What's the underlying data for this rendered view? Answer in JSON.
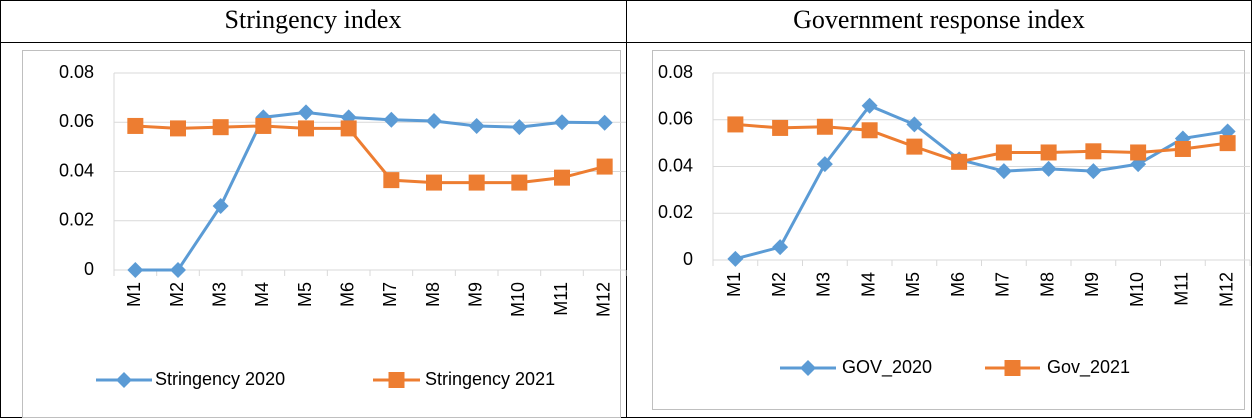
{
  "chart_data": [
    {
      "type": "line",
      "title": "Stringency index",
      "categories": [
        "M1",
        "M2",
        "M3",
        "M4",
        "M5",
        "M6",
        "M7",
        "M8",
        "M9",
        "M10",
        "M11",
        "M12"
      ],
      "series": [
        {
          "name": "Stringency 2020",
          "color": "#5b9bd5",
          "marker": "diamond",
          "values": [
            0,
            0,
            0.026,
            0.062,
            0.064,
            0.062,
            0.061,
            0.0605,
            0.0585,
            0.058,
            0.06,
            0.0598
          ]
        },
        {
          "name": "Stringency 2021",
          "color": "#ed7d31",
          "marker": "square",
          "values": [
            0.0585,
            0.0575,
            0.058,
            0.0585,
            0.0575,
            0.0575,
            0.0365,
            0.0355,
            0.0355,
            0.0355,
            0.0375,
            0.042
          ]
        }
      ],
      "ylim": [
        0,
        0.08
      ],
      "yticks": [
        0,
        0.02,
        0.04,
        0.06,
        0.08
      ],
      "grid": true,
      "legend": "bottom"
    },
    {
      "type": "line",
      "title": "Government response index",
      "categories": [
        "M1",
        "M2",
        "M3",
        "M4",
        "M5",
        "M6",
        "M7",
        "M8",
        "M9",
        "M10",
        "M11",
        "M12"
      ],
      "series": [
        {
          "name": "GOV_2020",
          "color": "#5b9bd5",
          "marker": "diamond",
          "values": [
            0.0005,
            0.0055,
            0.041,
            0.066,
            0.058,
            0.043,
            0.038,
            0.039,
            0.038,
            0.041,
            0.052,
            0.055
          ]
        },
        {
          "name": "Gov_2021",
          "color": "#ed7d31",
          "marker": "square",
          "values": [
            0.058,
            0.0565,
            0.057,
            0.0555,
            0.0485,
            0.042,
            0.046,
            0.046,
            0.0465,
            0.046,
            0.0475,
            0.05
          ]
        }
      ],
      "ylim": [
        0,
        0.08
      ],
      "yticks": [
        0,
        0.02,
        0.04,
        0.06,
        0.08
      ],
      "grid": true,
      "legend": "bottom"
    }
  ]
}
